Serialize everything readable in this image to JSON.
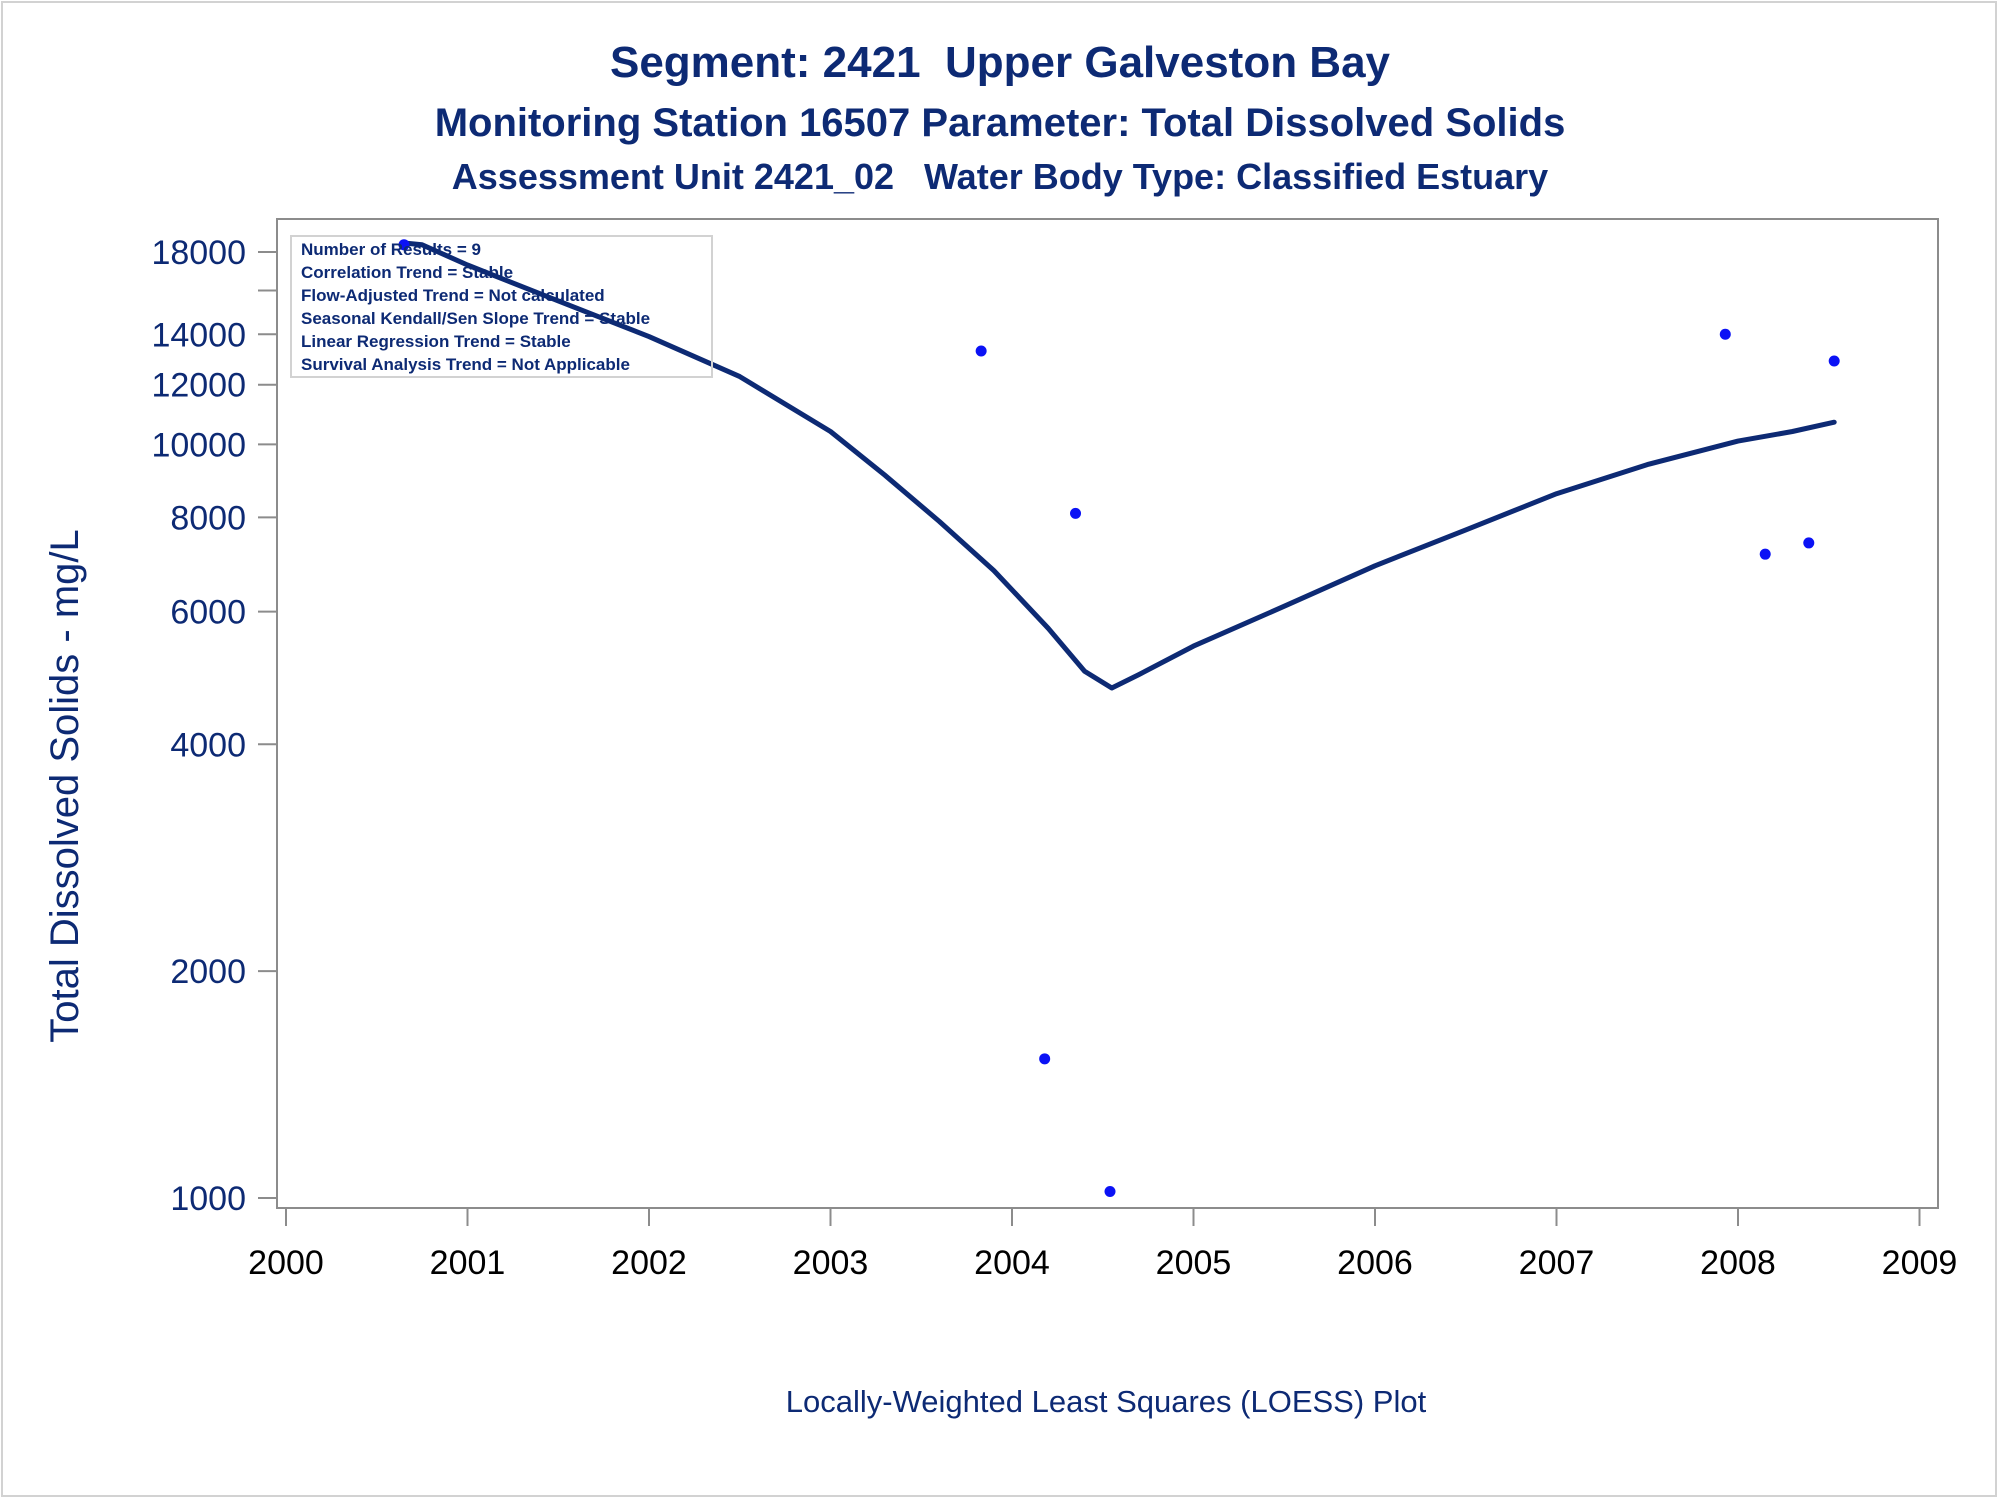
{
  "titles": {
    "line1": "Segment: 2421  Upper Galveston Bay",
    "line2": "Monitoring Station 16507 Parameter: Total Dissolved Solids",
    "line3": "Assessment Unit 2421_02   Water Body Type: Classified Estuary"
  },
  "stats_box": [
    "Number of Results = 9",
    "Correlation Trend = Stable",
    "Flow-Adjusted Trend = Not calculated",
    "Seasonal Kendall/Sen Slope Trend = Stable",
    "Linear Regression Trend = Stable",
    "Survival Analysis Trend = Not Applicable"
  ],
  "footnote": "Locally-Weighted Least Squares (LOESS) Plot",
  "colors": {
    "points": "#0b12f5",
    "loess_line": "#0d2a74",
    "text": "#0d2a74",
    "axis": "#8c8c8c"
  },
  "chart_data": {
    "type": "scatter",
    "title": "Segment: 2421  Upper Galveston Bay",
    "ylabel": "Total Dissolved Solids - mg/L",
    "xlabel": "",
    "yscale": "log",
    "xlim": [
      2000,
      2009
    ],
    "ylim": [
      950,
      19500
    ],
    "x_ticks": [
      2000,
      2001,
      2002,
      2003,
      2004,
      2005,
      2006,
      2007,
      2008,
      2009
    ],
    "y_ticks": [
      1000,
      2000,
      4000,
      6000,
      8000,
      10000,
      12000,
      14000,
      18000
    ],
    "legend": "inset top-left",
    "series": [
      {
        "kind": "points",
        "x": [
          2000.65,
          2003.83,
          2004.18,
          2004.35,
          2004.54,
          2007.93,
          2008.15,
          2008.39,
          2008.53
        ],
        "y": [
          18400,
          13300,
          1530,
          8100,
          1020,
          14000,
          7150,
          7400,
          12900
        ]
      },
      {
        "kind": "loess",
        "x": [
          2000.65,
          2000.75,
          2001.0,
          2001.5,
          2002.0,
          2002.5,
          2003.0,
          2003.3,
          2003.6,
          2003.9,
          2004.2,
          2004.4,
          2004.55,
          2004.7,
          2005.0,
          2005.5,
          2006.0,
          2006.5,
          2007.0,
          2007.5,
          2008.0,
          2008.3,
          2008.53
        ],
        "y": [
          18500,
          18400,
          17300,
          15500,
          13900,
          12300,
          10400,
          9100,
          7900,
          6800,
          5700,
          5000,
          4750,
          4950,
          5400,
          6100,
          6900,
          7700,
          8600,
          9400,
          10100,
          10400,
          10700
        ]
      }
    ]
  }
}
